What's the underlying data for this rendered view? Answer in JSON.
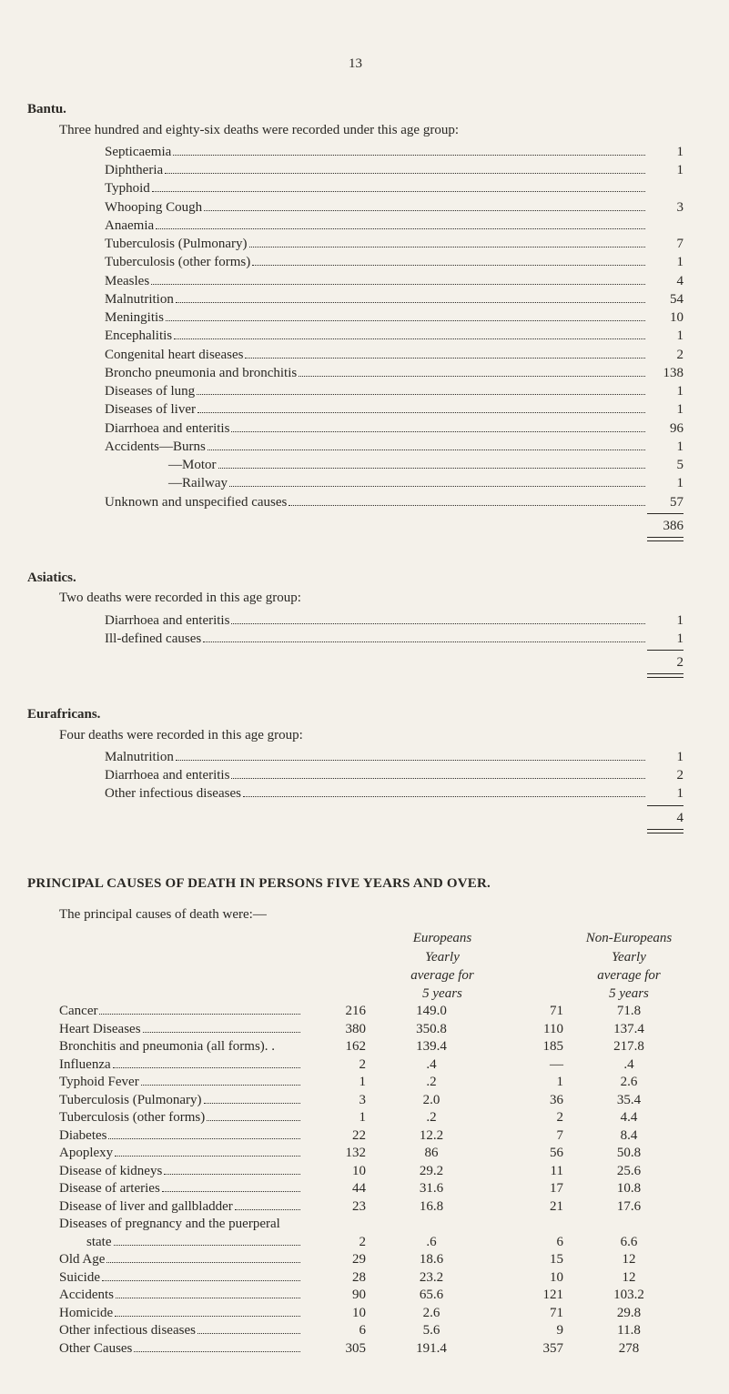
{
  "page_number": "13",
  "bantu": {
    "heading": "Bantu.",
    "intro": "Three hundred and eighty-six deaths were recorded under this age group:",
    "items": [
      {
        "label": "Septicaemia",
        "value": "1"
      },
      {
        "label": "Diphtheria",
        "value": "1"
      },
      {
        "label": "Typhoid",
        "value": ""
      },
      {
        "label": "Whooping Cough",
        "value": "3"
      },
      {
        "label": "Anaemia",
        "value": ""
      },
      {
        "label": "Tuberculosis (Pulmonary)",
        "value": "7"
      },
      {
        "label": "Tuberculosis (other forms)",
        "value": "1"
      },
      {
        "label": "Measles",
        "value": "4"
      },
      {
        "label": "Malnutrition",
        "value": "54"
      },
      {
        "label": "Meningitis",
        "value": "10"
      },
      {
        "label": "Encephalitis",
        "value": "1"
      },
      {
        "label": "Congenital heart diseases",
        "value": "2"
      },
      {
        "label": "Broncho pneumonia and bronchitis",
        "value": "138"
      },
      {
        "label": "Diseases of lung",
        "value": "1"
      },
      {
        "label": "Diseases of liver",
        "value": "1"
      },
      {
        "label": "Diarrhoea and enteritis",
        "value": "96"
      },
      {
        "label": "Accidents—Burns",
        "value": "1"
      },
      {
        "label": "—Motor",
        "value": "5",
        "indent": true
      },
      {
        "label": "—Railway",
        "value": "1",
        "indent": true
      },
      {
        "label": "Unknown and unspecified causes",
        "value": "57"
      }
    ],
    "total": "386"
  },
  "asiatics": {
    "heading": "Asiatics.",
    "intro": "Two deaths were recorded in this age group:",
    "items": [
      {
        "label": "Diarrhoea and enteritis",
        "value": "1"
      },
      {
        "label": "Ill-defined causes",
        "value": "1"
      }
    ],
    "total": "2"
  },
  "eurafricans": {
    "heading": "Eurafricans.",
    "intro": "Four deaths were recorded in this age group:",
    "items": [
      {
        "label": "Malnutrition",
        "value": "1"
      },
      {
        "label": "Diarrhoea and enteritis",
        "value": "2"
      },
      {
        "label": "Other infectious diseases",
        "value": "1"
      }
    ],
    "total": "4"
  },
  "principal": {
    "heading": "PRINCIPAL CAUSES OF DEATH IN PERSONS FIVE YEARS AND OVER.",
    "intro": "The principal causes of death were:—",
    "header": {
      "col_b_line1": "Europeans",
      "col_b_line2": "Yearly",
      "col_b_line3": "average for",
      "col_b_line4": "5 years",
      "col_d_line1": "Non-Europeans",
      "col_d_line2": "Yearly",
      "col_d_line3": "average for",
      "col_d_line4": "5 years"
    },
    "rows": [
      {
        "label": "Cancer",
        "a": "216",
        "b": "149.0",
        "c": "71",
        "d": "71.8"
      },
      {
        "label": "Heart Diseases",
        "a": "380",
        "b": "350.8",
        "c": "110",
        "d": "137.4"
      },
      {
        "label": "Bronchitis and pneumonia (all forms). .",
        "a": "162",
        "b": "139.4",
        "c": "185",
        "d": "217.8",
        "nodots": true
      },
      {
        "label": "Influenza",
        "a": "2",
        "b": ".4",
        "c": "—",
        "d": ".4"
      },
      {
        "label": "Typhoid Fever",
        "a": "1",
        "b": ".2",
        "c": "1",
        "d": "2.6"
      },
      {
        "label": "Tuberculosis (Pulmonary)",
        "a": "3",
        "b": "2.0",
        "c": "36",
        "d": "35.4"
      },
      {
        "label": "Tuberculosis (other forms)",
        "a": "1",
        "b": ".2",
        "c": "2",
        "d": "4.4"
      },
      {
        "label": "Diabetes",
        "a": "22",
        "b": "12.2",
        "c": "7",
        "d": "8.4"
      },
      {
        "label": "Apoplexy",
        "a": "132",
        "b": "86",
        "c": "56",
        "d": "50.8"
      },
      {
        "label": "Disease of kidneys",
        "a": "10",
        "b": "29.2",
        "c": "11",
        "d": "25.6"
      },
      {
        "label": "Disease of arteries",
        "a": "44",
        "b": "31.6",
        "c": "17",
        "d": "10.8"
      },
      {
        "label": "Disease of liver and gallbladder",
        "a": "23",
        "b": "16.8",
        "c": "21",
        "d": "17.6"
      },
      {
        "label": "Diseases of pregnancy and the puerperal",
        "a": "",
        "b": "",
        "c": "",
        "d": "",
        "nodots": true
      },
      {
        "label": "state",
        "a": "2",
        "b": ".6",
        "c": "6",
        "d": "6.6",
        "indent": true
      },
      {
        "label": "Old Age",
        "a": "29",
        "b": "18.6",
        "c": "15",
        "d": "12"
      },
      {
        "label": "Suicide",
        "a": "28",
        "b": "23.2",
        "c": "10",
        "d": "12"
      },
      {
        "label": "Accidents",
        "a": "90",
        "b": "65.6",
        "c": "121",
        "d": "103.2"
      },
      {
        "label": "Homicide",
        "a": "10",
        "b": "2.6",
        "c": "71",
        "d": "29.8"
      },
      {
        "label": "Other infectious diseases",
        "a": "6",
        "b": "5.6",
        "c": "9",
        "d": "11.8"
      },
      {
        "label": "Other Causes",
        "a": "305",
        "b": "191.4",
        "c": "357",
        "d": "278"
      }
    ]
  }
}
